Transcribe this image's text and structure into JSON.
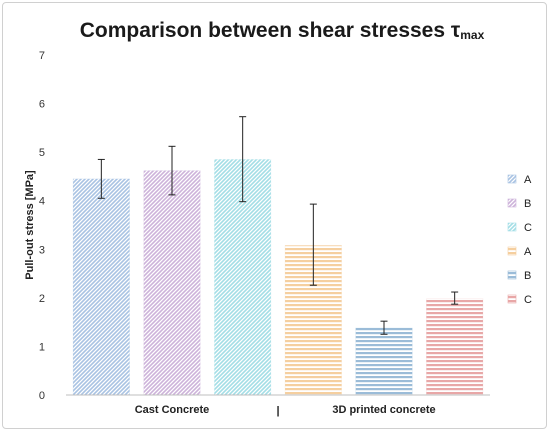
{
  "chart_data": {
    "type": "bar",
    "title_main": "Comparison between shear stresses τ",
    "title_sub": "max",
    "ylabel": "Pull-out stress [MPa]",
    "ylim": [
      0,
      7
    ],
    "yticks": [
      "0",
      "1",
      "2",
      "3",
      "4",
      "5",
      "6",
      "7"
    ],
    "groups": [
      {
        "label": "Cast Concrete",
        "separator": "|"
      },
      {
        "label": "3D printed concrete"
      }
    ],
    "series": [
      {
        "name": "A",
        "group": 0,
        "value": 4.45,
        "err_low": 4.05,
        "err_high": 4.85,
        "color": "#a9c3e3"
      },
      {
        "name": "B",
        "group": 0,
        "value": 4.62,
        "err_low": 4.12,
        "err_high": 5.12,
        "color": "#cdb3da"
      },
      {
        "name": "C",
        "group": 0,
        "value": 4.85,
        "err_low": 3.98,
        "err_high": 5.73,
        "color": "#a3dee6"
      },
      {
        "name": "A",
        "group": 1,
        "value": 3.08,
        "err_low": 2.26,
        "err_high": 3.93,
        "color": "#f5cf9f"
      },
      {
        "name": "B",
        "group": 1,
        "value": 1.38,
        "err_low": 1.25,
        "err_high": 1.52,
        "color": "#9bbcd8"
      },
      {
        "name": "C",
        "group": 1,
        "value": 1.98,
        "err_low": 1.87,
        "err_high": 2.12,
        "color": "#e8a7a7"
      }
    ],
    "legend_position": "right"
  }
}
